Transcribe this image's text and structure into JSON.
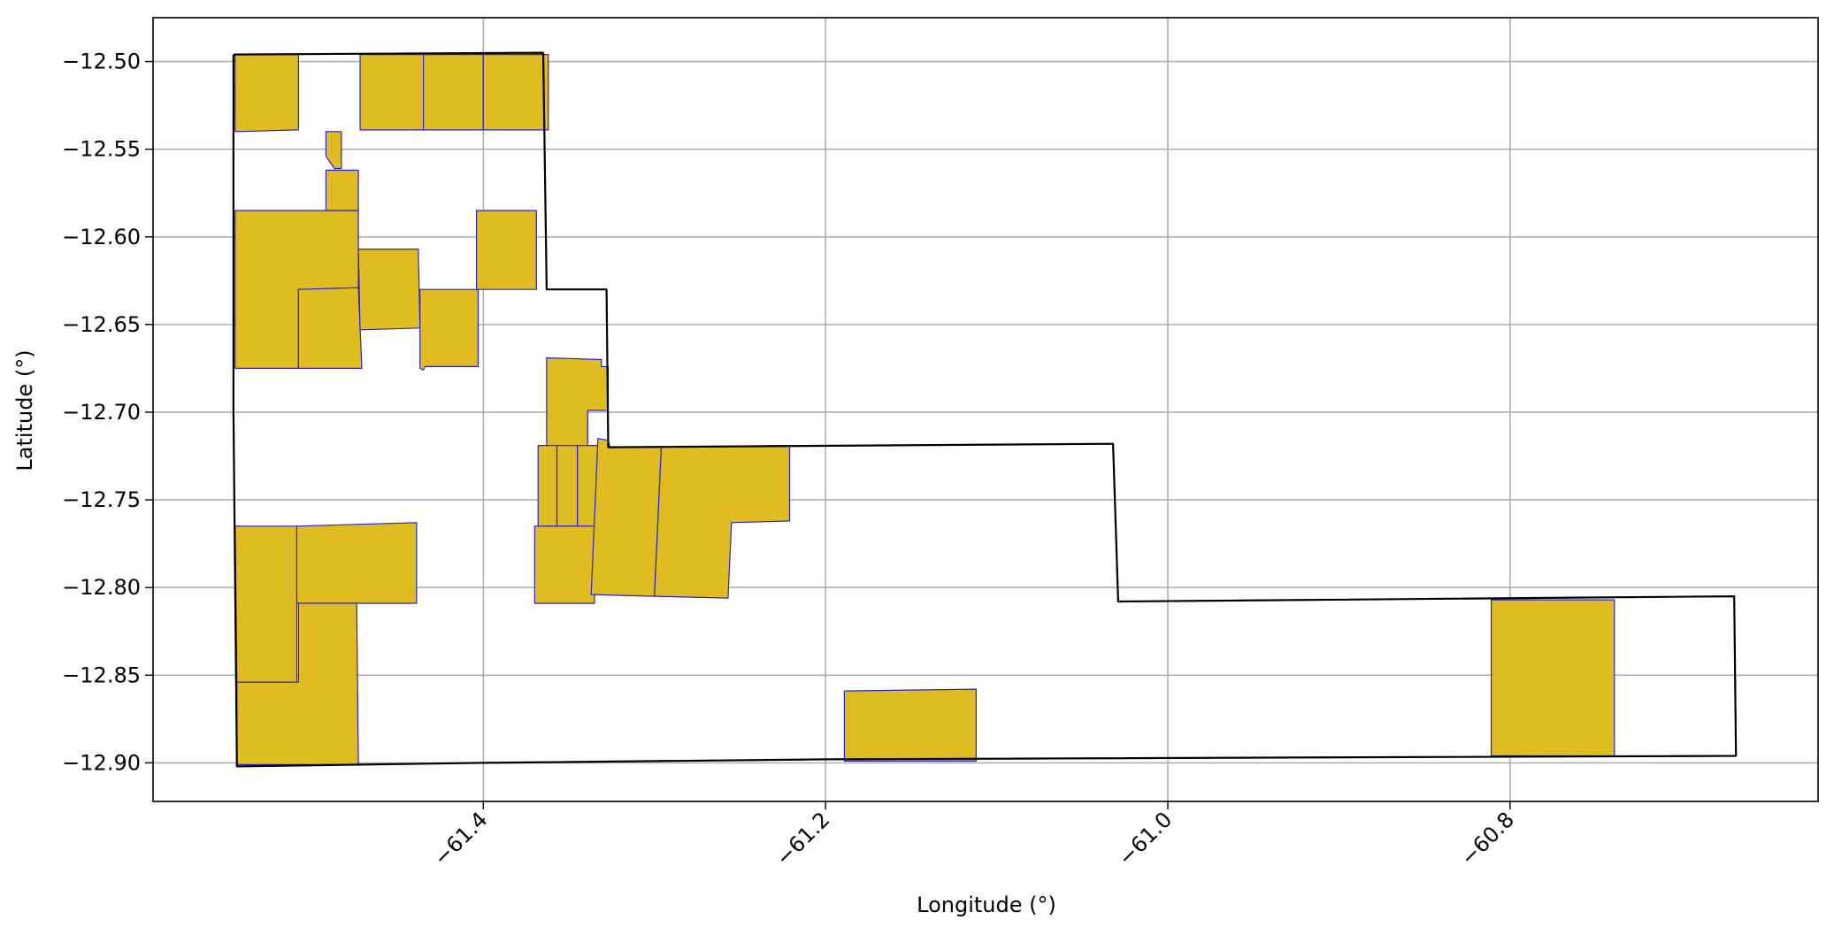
{
  "chart_data": {
    "type": "map",
    "xlabel": "Longitude (°)",
    "ylabel": "Latitude (°)",
    "xlim": [
      -61.593,
      -60.62
    ],
    "ylim": [
      -12.922,
      -12.475
    ],
    "xticks": [
      -61.4,
      -61.2,
      -61.0,
      -60.8
    ],
    "xtick_labels": [
      "−61.4",
      "−61.2",
      "−61.0",
      "−60.8"
    ],
    "yticks": [
      -12.5,
      -12.55,
      -12.6,
      -12.65,
      -12.7,
      -12.75,
      -12.8,
      -12.85,
      -12.9
    ],
    "ytick_labels": [
      "−12.50",
      "−12.55",
      "−12.60",
      "−12.65",
      "−12.70",
      "−12.75",
      "−12.80",
      "−12.85",
      "−12.90"
    ],
    "grid": true,
    "colors": {
      "parcel_fill": "#DFBD22",
      "parcel_edge": "#2A22CC",
      "boundary": "#000000",
      "grid": "#b0b0b0"
    },
    "boundary": [
      [
        -61.546,
        -12.496
      ],
      [
        -61.365,
        -12.495
      ],
      [
        -61.363,
        -12.63
      ],
      [
        -61.328,
        -12.63
      ],
      [
        -61.327,
        -12.72
      ],
      [
        -61.032,
        -12.718
      ],
      [
        -61.029,
        -12.808
      ],
      [
        -60.669,
        -12.805
      ],
      [
        -60.668,
        -12.896
      ],
      [
        -61.2,
        -12.898
      ],
      [
        -61.4,
        -12.9
      ],
      [
        -61.544,
        -12.902
      ],
      [
        -61.546,
        -12.7
      ],
      [
        -61.546,
        -12.496
      ]
    ],
    "parcels": [
      [
        [
          -61.545,
          -12.496
        ],
        [
          -61.508,
          -12.496
        ],
        [
          -61.508,
          -12.539
        ],
        [
          -61.545,
          -12.54
        ]
      ],
      [
        [
          -61.472,
          -12.496
        ],
        [
          -61.435,
          -12.496
        ],
        [
          -61.435,
          -12.539
        ],
        [
          -61.472,
          -12.539
        ]
      ],
      [
        [
          -61.435,
          -12.496
        ],
        [
          -61.4,
          -12.496
        ],
        [
          -61.4,
          -12.539
        ],
        [
          -61.435,
          -12.539
        ]
      ],
      [
        [
          -61.4,
          -12.496
        ],
        [
          -61.362,
          -12.496
        ],
        [
          -61.362,
          -12.539
        ],
        [
          -61.4,
          -12.539
        ]
      ],
      [
        [
          -61.492,
          -12.54
        ],
        [
          -61.483,
          -12.54
        ],
        [
          -61.483,
          -12.561
        ],
        [
          -61.487,
          -12.561
        ],
        [
          -61.492,
          -12.554
        ]
      ],
      [
        [
          -61.492,
          -12.562
        ],
        [
          -61.473,
          -12.562
        ],
        [
          -61.473,
          -12.585
        ],
        [
          -61.492,
          -12.585
        ]
      ],
      [
        [
          -61.545,
          -12.585
        ],
        [
          -61.473,
          -12.585
        ],
        [
          -61.473,
          -12.63
        ],
        [
          -61.508,
          -12.63
        ],
        [
          -61.508,
          -12.675
        ],
        [
          -61.545,
          -12.675
        ]
      ],
      [
        [
          -61.508,
          -12.63
        ],
        [
          -61.473,
          -12.629
        ],
        [
          -61.471,
          -12.675
        ],
        [
          -61.508,
          -12.675
        ]
      ],
      [
        [
          -61.473,
          -12.607
        ],
        [
          -61.438,
          -12.607
        ],
        [
          -61.437,
          -12.652
        ],
        [
          -61.472,
          -12.653
        ]
      ],
      [
        [
          -61.437,
          -12.63
        ],
        [
          -61.403,
          -12.63
        ],
        [
          -61.403,
          -12.674
        ],
        [
          -61.434,
          -12.674
        ],
        [
          -61.435,
          -12.676
        ],
        [
          -61.437,
          -12.675
        ]
      ],
      [
        [
          -61.404,
          -12.585
        ],
        [
          -61.369,
          -12.585
        ],
        [
          -61.369,
          -12.63
        ],
        [
          -61.404,
          -12.63
        ]
      ],
      [
        [
          -61.363,
          -12.669
        ],
        [
          -61.331,
          -12.67
        ],
        [
          -61.331,
          -12.674
        ],
        [
          -61.327,
          -12.674
        ],
        [
          -61.327,
          -12.699
        ],
        [
          -61.339,
          -12.699
        ],
        [
          -61.339,
          -12.719
        ],
        [
          -61.363,
          -12.719
        ]
      ],
      [
        [
          -61.368,
          -12.719
        ],
        [
          -61.357,
          -12.719
        ],
        [
          -61.357,
          -12.765
        ],
        [
          -61.368,
          -12.765
        ]
      ],
      [
        [
          -61.357,
          -12.719
        ],
        [
          -61.345,
          -12.719
        ],
        [
          -61.345,
          -12.765
        ],
        [
          -61.357,
          -12.765
        ]
      ],
      [
        [
          -61.345,
          -12.719
        ],
        [
          -61.333,
          -12.719
        ],
        [
          -61.335,
          -12.765
        ],
        [
          -61.345,
          -12.765
        ]
      ],
      [
        [
          -61.37,
          -12.765
        ],
        [
          -61.335,
          -12.765
        ],
        [
          -61.335,
          -12.809
        ],
        [
          -61.37,
          -12.809
        ]
      ],
      [
        [
          -61.333,
          -12.715
        ],
        [
          -61.327,
          -12.716
        ],
        [
          -61.326,
          -12.72
        ],
        [
          -61.296,
          -12.72
        ],
        [
          -61.3,
          -12.805
        ],
        [
          -61.337,
          -12.804
        ]
      ],
      [
        [
          -61.296,
          -12.72
        ],
        [
          -61.221,
          -12.719
        ],
        [
          -61.221,
          -12.762
        ],
        [
          -61.255,
          -12.763
        ],
        [
          -61.257,
          -12.806
        ],
        [
          -61.3,
          -12.805
        ]
      ],
      [
        [
          -61.545,
          -12.765
        ],
        [
          -61.509,
          -12.765
        ],
        [
          -61.509,
          -12.854
        ],
        [
          -61.544,
          -12.854
        ]
      ],
      [
        [
          -61.509,
          -12.765
        ],
        [
          -61.439,
          -12.763
        ],
        [
          -61.439,
          -12.809
        ],
        [
          -61.509,
          -12.809
        ]
      ],
      [
        [
          -61.508,
          -12.809
        ],
        [
          -61.474,
          -12.809
        ],
        [
          -61.473,
          -12.901
        ],
        [
          -61.544,
          -12.901
        ],
        [
          -61.544,
          -12.854
        ],
        [
          -61.508,
          -12.854
        ]
      ],
      [
        [
          -61.189,
          -12.859
        ],
        [
          -61.112,
          -12.858
        ],
        [
          -61.112,
          -12.899
        ],
        [
          -61.189,
          -12.899
        ]
      ],
      [
        [
          -60.811,
          -12.807
        ],
        [
          -60.739,
          -12.807
        ],
        [
          -60.739,
          -12.896
        ],
        [
          -60.811,
          -12.896
        ]
      ]
    ]
  }
}
